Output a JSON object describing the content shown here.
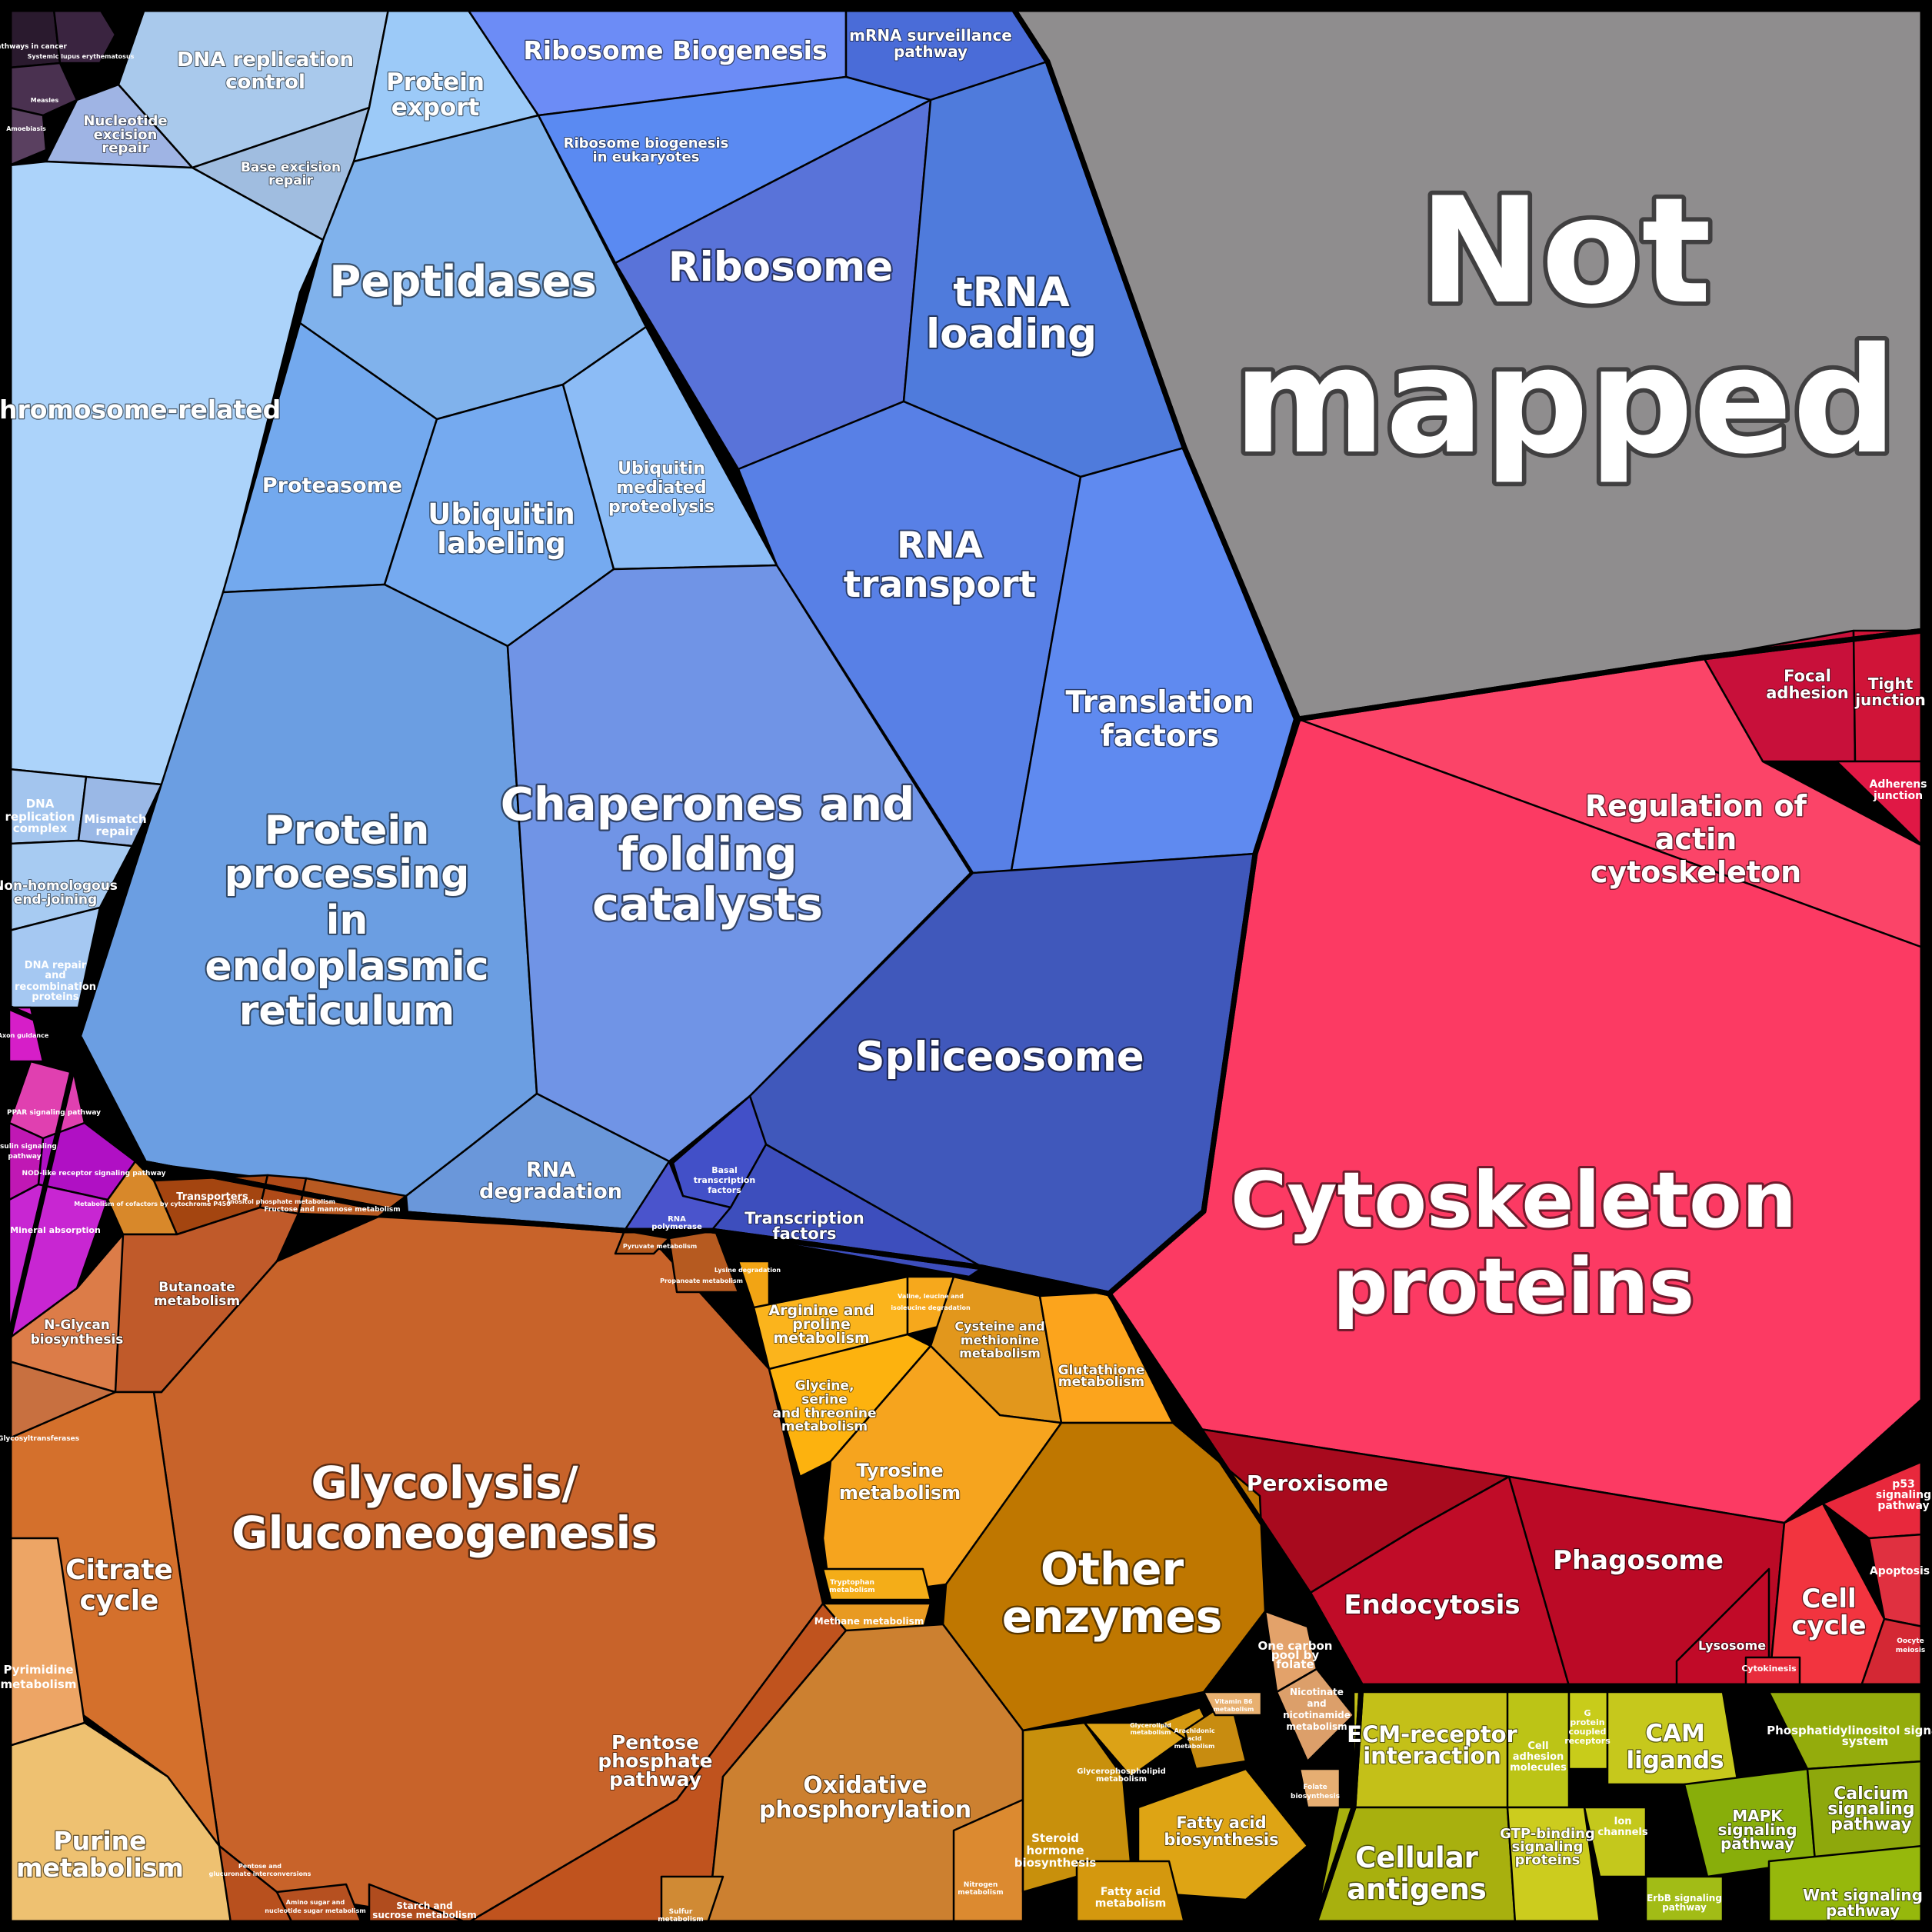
{
  "title": "",
  "groups": {
    "not_mapped": "Not mapped",
    "cytoskeleton": "Cytoskeleton proteins"
  },
  "cells": [
    {
      "id": "pathways-in-cancer",
      "label": "Pathways in cancer",
      "color": "#2a1a2e"
    },
    {
      "id": "systemic-lupus",
      "label": "Systemic lupus erythematosus",
      "color": "#3a2440"
    },
    {
      "id": "measles",
      "label": "Measles",
      "color": "#4a3150"
    },
    {
      "id": "amoebiasis",
      "label": "Amoebiasis",
      "color": "#5a4060"
    },
    {
      "id": "dna-replication-control",
      "label": "DNA replication control",
      "color": "#a9c9ec"
    },
    {
      "id": "nucleotide-excision-repair",
      "label": "Nucleotide excision repair",
      "color": "#9fb4e4"
    },
    {
      "id": "base-excision-repair",
      "label": "Base excision repair",
      "color": "#a0bde0"
    },
    {
      "id": "protein-export",
      "label": "Protein export",
      "color": "#9ccaf8"
    },
    {
      "id": "chromosome-related",
      "label": "Chromosome-related",
      "color": "#acd3fa"
    },
    {
      "id": "dna-replication-complex",
      "label": "DNA replication complex",
      "color": "#a3c5ee"
    },
    {
      "id": "mismatch-repair",
      "label": "Mismatch repair",
      "color": "#9ab8e6"
    },
    {
      "id": "nhej",
      "label": "Non-homologous end-joining",
      "color": "#a7cbf2"
    },
    {
      "id": "dna-repair-proteins",
      "label": "DNA repair and recombination proteins",
      "color": "#a5c8f2"
    },
    {
      "id": "peptidases",
      "label": "Peptidases",
      "color": "#80b2ec"
    },
    {
      "id": "proteasome",
      "label": "Proteasome",
      "color": "#73a9ee"
    },
    {
      "id": "ubiquitin-labeling",
      "label": "Ubiquitin labeling",
      "color": "#75aaf0"
    },
    {
      "id": "ubiquitin-proteolysis",
      "label": "Ubiquitin mediated proteolysis",
      "color": "#8cbcf6"
    },
    {
      "id": "protein-processing-er",
      "label": "Protein processing in endoplasmic reticulum",
      "color": "#6b9ee2"
    },
    {
      "id": "chaperones",
      "label": "Chaperones and folding catalysts",
      "color": "#7094e6"
    },
    {
      "id": "rna-degradation",
      "label": "RNA degradation",
      "color": "#6a97da"
    },
    {
      "id": "ribosome-biogenesis",
      "label": "Ribosome Biogenesis",
      "color": "#6c8cf6"
    },
    {
      "id": "mrna-surveillance",
      "label": "mRNA surveillance pathway",
      "color": "#4a6cd8"
    },
    {
      "id": "ribosome-biogenesis-euk",
      "label": "Ribosome biogenesis in eukaryotes",
      "color": "#5a8af2"
    },
    {
      "id": "ribosome",
      "label": "Ribosome",
      "color": "#5973d9"
    },
    {
      "id": "trna-loading",
      "label": "tRNA loading",
      "color": "#4f7bdc"
    },
    {
      "id": "rna-transport",
      "label": "RNA transport",
      "color": "#5880e6"
    },
    {
      "id": "translation-factors",
      "label": "Translation factors",
      "color": "#5f8af0"
    },
    {
      "id": "spliceosome",
      "label": "Spliceosome",
      "color": "#4058bb"
    },
    {
      "id": "basal-tf",
      "label": "Basal transcription factors",
      "color": "#4250c8"
    },
    {
      "id": "rna-polymerase",
      "label": "RNA polymerase",
      "color": "#4a54cc"
    },
    {
      "id": "transcription-factors",
      "label": "Transcription factors",
      "color": "#3d4ebd"
    },
    {
      "id": "not-mapped",
      "label": "",
      "color": "#8f8d8e"
    },
    {
      "id": "focal-adhesion",
      "label": "Focal adhesion",
      "color": "#c8103a"
    },
    {
      "id": "tight-junction",
      "label": "Tight junction",
      "color": "#d01438"
    },
    {
      "id": "adherens-junction",
      "label": "Adherens junction",
      "color": "#e01845"
    },
    {
      "id": "regulation-actin",
      "label": "Regulation of actin cytoskeleton",
      "color": "#fb4468"
    },
    {
      "id": "cytoskeleton-proteins",
      "label": "",
      "color": "#fc3a63"
    },
    {
      "id": "peroxisome",
      "label": "Peroxisome",
      "color": "#a80a1e"
    },
    {
      "id": "endocytosis",
      "label": "Endocytosis",
      "color": "#c00c28"
    },
    {
      "id": "phagosome",
      "label": "Phagosome",
      "color": "#bb0a26"
    },
    {
      "id": "lysosome",
      "label": "Lysosome",
      "color": "#c10a28"
    },
    {
      "id": "p53-signaling",
      "label": "p53 signaling pathway",
      "color": "#e8283c"
    },
    {
      "id": "apoptosis",
      "label": "Apoptosis",
      "color": "#e03040"
    },
    {
      "id": "cell-cycle",
      "label": "Cell cycle",
      "color": "#f2343f"
    },
    {
      "id": "cytokinesis",
      "label": "Cytokinesis",
      "color": "#e82c3c"
    },
    {
      "id": "oocyte-meiosis",
      "label": "Oocyte meiosis",
      "color": "#d42834"
    },
    {
      "id": "axon-guidance",
      "label": "Axon guidance",
      "color": "#d61ec8"
    },
    {
      "id": "ppar-signaling",
      "label": "PPAR signaling pathway",
      "color": "#e040b0"
    },
    {
      "id": "insulin-signaling",
      "label": "Insulin signaling pathway",
      "color": "#c018b4"
    },
    {
      "id": "nod-like",
      "label": "NOD-like receptor signaling pathway",
      "color": "#b010c4"
    },
    {
      "id": "mineral-absorption",
      "label": "Mineral absorption",
      "color": "#c826d2"
    },
    {
      "id": "transporters",
      "label": "Transporters",
      "color": "#a44510"
    },
    {
      "id": "metabolism-cofactors",
      "label": "Metabolism of cofactors by cytochrome P450",
      "color": "#d8882a"
    },
    {
      "id": "inositol-phosphate",
      "label": "Inositol phosphate metabolism",
      "color": "#b04a18"
    },
    {
      "id": "fructose-mannose",
      "label": "Fructose and mannose metabolism",
      "color": "#b85a22"
    },
    {
      "id": "n-glycan",
      "label": "N-Glycan biosynthesis",
      "color": "#dc7c48"
    },
    {
      "id": "butanoate",
      "label": "Butanoate metabolism",
      "color": "#c05a2a"
    },
    {
      "id": "glycolysis",
      "label": "Glycolysis/ Gluconeogenesis",
      "color": "#c8632a"
    },
    {
      "id": "citrate-cycle",
      "label": "Citrate cycle",
      "color": "#d4702c"
    },
    {
      "id": "glycosyltransferases",
      "label": "Glycosyltransferases",
      "color": "#c87040"
    },
    {
      "id": "pyrimidine",
      "label": "Pyrimidine metabolism",
      "color": "#eda565"
    },
    {
      "id": "purine",
      "label": "Purine metabolism",
      "color": "#eec171"
    },
    {
      "id": "pentose-phosphate",
      "label": "Pentose phosphate pathway",
      "color": "#c0531e"
    },
    {
      "id": "pentose-glucuronate",
      "label": "Pentose and glucuronate interconversions",
      "color": "#b8501e"
    },
    {
      "id": "amino-sugar",
      "label": "Amino sugar and nucleotide sugar metabolism",
      "color": "#b65020"
    },
    {
      "id": "starch-sucrose",
      "label": "Starch and sucrose metabolism",
      "color": "#b04c1e"
    },
    {
      "id": "pyruvate",
      "label": "Pyruvate metabolism",
      "color": "#b4581c"
    },
    {
      "id": "propanoate",
      "label": "Propanoate metabolism",
      "color": "#b65a20"
    },
    {
      "id": "lysine-degradation",
      "label": "Lysine degradation",
      "color": "#f2a414"
    },
    {
      "id": "arginine-proline",
      "label": "Arginine and proline metabolism",
      "color": "#fbb41c"
    },
    {
      "id": "valine-leucine",
      "label": "Valine, leucine and isoleucine degradation",
      "color": "#f6a81c"
    },
    {
      "id": "cysteine-methionine",
      "label": "Cysteine and methionine metabolism",
      "color": "#e2971c"
    },
    {
      "id": "glutathione",
      "label": "Glutathione metabolism",
      "color": "#fca41c"
    },
    {
      "id": "glycine-serine",
      "label": "Glycine, serine and threonine metabolism",
      "color": "#fdb20e"
    },
    {
      "id": "tyrosine",
      "label": "Tyrosine metabolism",
      "color": "#f6a41e"
    },
    {
      "id": "tryptophan",
      "label": "Tryptophan metabolism",
      "color": "#f4ad18"
    },
    {
      "id": "methane",
      "label": "Methane metabolism",
      "color": "#e89a22"
    },
    {
      "id": "other-enzymes",
      "label": "Other enzymes",
      "color": "#bf7700"
    },
    {
      "id": "oxidative-phosphorylation",
      "label": "Oxidative phosphorylation",
      "color": "#cc8030"
    },
    {
      "id": "nitrogen",
      "label": "Nitrogen metabolism",
      "color": "#dc8a30"
    },
    {
      "id": "sulfur",
      "label": "Sulfur metabolism",
      "color": "#d08a34"
    },
    {
      "id": "steroid-hormone",
      "label": "Steroid hormone biosynthesis",
      "color": "#c8900c"
    },
    {
      "id": "glycerophospholipid",
      "label": "Glycerophospholipid metabolism",
      "color": "#dca216"
    },
    {
      "id": "glycerolipid",
      "label": "Glycerolipid metabolism",
      "color": "#d49810"
    },
    {
      "id": "arachidonic",
      "label": "Arachidonic acid metabolism",
      "color": "#c88c10"
    },
    {
      "id": "fatty-acid-biosynthesis",
      "label": "Fatty acid biosynthesis",
      "color": "#dea414"
    },
    {
      "id": "fatty-acid-metabolism",
      "label": "Fatty acid metabolism",
      "color": "#d4980e"
    },
    {
      "id": "one-carbon",
      "label": "One carbon pool by folate",
      "color": "#e3a26a"
    },
    {
      "id": "nicotinate",
      "label": "Nicotinate and nicotinamide metabolism",
      "color": "#dc9f6a"
    },
    {
      "id": "vitamin-b6",
      "label": "Vitamin B6 metabolism",
      "color": "#e8b070"
    },
    {
      "id": "folate-biosynthesis",
      "label": "Folate biosynthesis",
      "color": "#e6ae72"
    },
    {
      "id": "ecm-receptor",
      "label": "ECM-receptor interaction",
      "color": "#c4c018"
    },
    {
      "id": "cell-adhesion-molecules",
      "label": "Cell adhesion molecules",
      "color": "#bcc416"
    },
    {
      "id": "g-protein-receptors",
      "label": "G protein coupled receptors",
      "color": "#c8cc1a"
    },
    {
      "id": "cam-ligands",
      "label": "CAM ligands",
      "color": "#c6c81c"
    },
    {
      "id": "cellular-antigens",
      "label": "Cellular antigens",
      "color": "#a8b00e"
    },
    {
      "id": "gtp-binding",
      "label": "GTP-binding signaling proteins",
      "color": "#cccc1e"
    },
    {
      "id": "ion-channels",
      "label": "Ion channels",
      "color": "#c4c81c"
    },
    {
      "id": "phosphatidylinositol",
      "label": "Phosphatidylinositol signaling system",
      "color": "#94ac0c"
    },
    {
      "id": "mapk-signaling",
      "label": "MAPK signaling pathway",
      "color": "#88ae0a"
    },
    {
      "id": "calcium-signaling",
      "label": "Calcium signaling pathway",
      "color": "#8ea80c"
    },
    {
      "id": "erbb-signaling",
      "label": "ErbB signaling pathway",
      "color": "#a2bc16"
    },
    {
      "id": "wnt-signaling",
      "label": "Wnt signaling pathway",
      "color": "#96b80c"
    }
  ]
}
